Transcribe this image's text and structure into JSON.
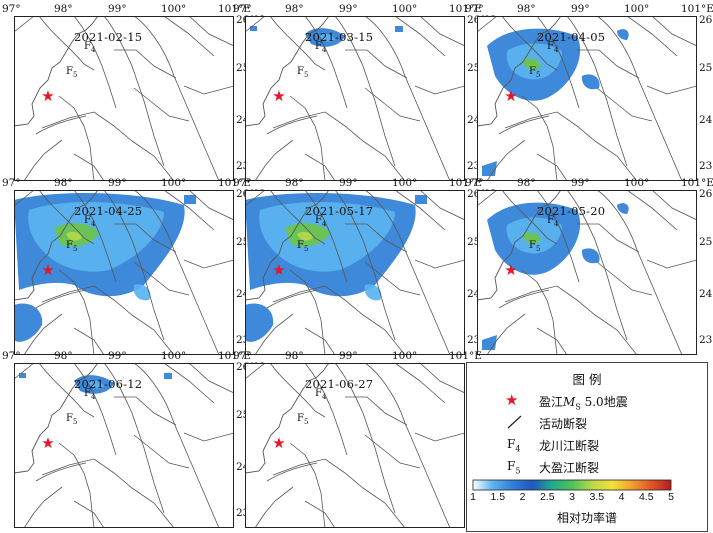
{
  "axes": {
    "lon_labels": [
      "97°",
      "98°",
      "99°",
      "100°",
      "101°E"
    ],
    "lat_labels": [
      "26°N",
      "25°",
      "24°",
      "23°"
    ]
  },
  "faults": {
    "f4": "F",
    "f4_sub": "4",
    "f5": "F",
    "f5_sub": "5"
  },
  "panels": [
    {
      "date": "2021-02-15",
      "activity": "none"
    },
    {
      "date": "2021-03-15",
      "activity": "low"
    },
    {
      "date": "2021-04-05",
      "activity": "medium"
    },
    {
      "date": "2021-04-25",
      "activity": "high"
    },
    {
      "date": "2021-05-17",
      "activity": "high"
    },
    {
      "date": "2021-05-20",
      "activity": "medium"
    },
    {
      "date": "2021-06-12",
      "activity": "low"
    },
    {
      "date": "2021-06-27",
      "activity": "none"
    }
  ],
  "legend": {
    "title": "图 例",
    "earthquake_pre": "盈江",
    "earthquake_m": "M",
    "earthquake_sub": "S",
    "earthquake_post": " 5.0地震",
    "active_fault": "活动断裂",
    "f4_label": "龙川江断裂",
    "f5_label": "大盈江断裂",
    "colorbar_ticks": [
      "1",
      "1.5",
      "2",
      "2.5",
      "3",
      "3.5",
      "4",
      "4.5",
      "5"
    ],
    "colorbar_title": "相对功率谱",
    "colors": [
      "#ffffff",
      "#5ab4f0",
      "#2f7fd8",
      "#1f57c0",
      "#23a98a",
      "#4fc35a",
      "#b9d84a",
      "#f0e23a",
      "#f3a12e",
      "#e55427",
      "#b01d1d"
    ]
  },
  "colors": {
    "star": "#e8142a",
    "fault_line": "#555555",
    "anomaly_blue": "#2f7fd8",
    "anomaly_light": "#5ab4f0",
    "anomaly_green": "#6cc44a"
  }
}
